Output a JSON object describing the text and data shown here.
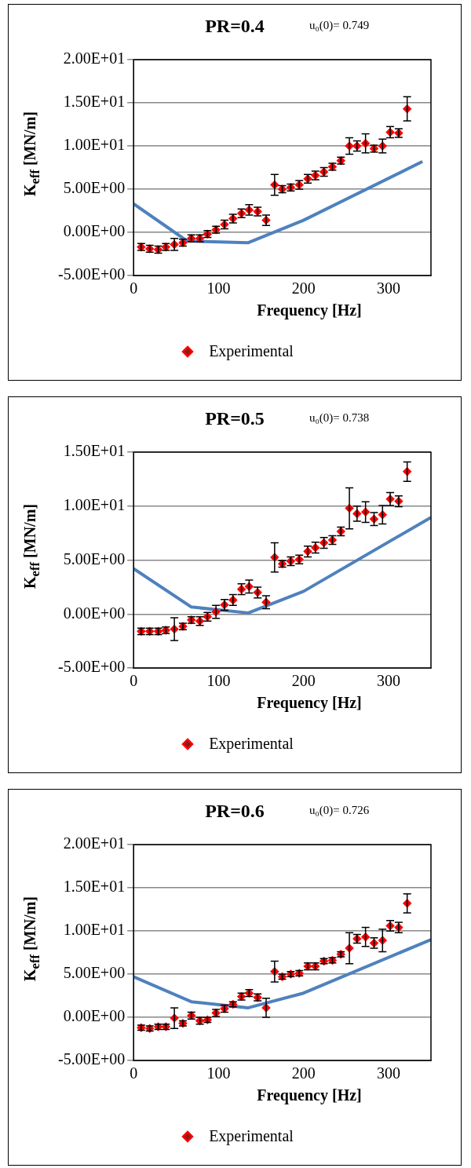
{
  "chart_data": [
    {
      "type": "scatter",
      "title": "PR=0.4",
      "annotations": [
        "u₀(0)= 0.749"
      ],
      "xlabel": "Frequency [Hz]",
      "ylabel": "K$_{eff}$ [MN/m]",
      "xlim": [
        0,
        350
      ],
      "xticks": [
        0,
        100,
        200,
        300
      ],
      "ylim": [
        -5,
        20
      ],
      "yticks": [
        {
          "value": -5,
          "label": "-5.00E+00"
        },
        {
          "value": 0,
          "label": "0.00E+00"
        },
        {
          "value": 5,
          "label": "5.00E+00"
        },
        {
          "value": 10,
          "label": "1.00E+01"
        },
        {
          "value": 15,
          "label": "1.50E+01"
        },
        {
          "value": 20,
          "label": "2.00E+01"
        }
      ],
      "grid": "y",
      "legend": "bottom",
      "series": [
        {
          "type": "line",
          "marker": "none",
          "color": "#4f81bd",
          "x": [
            0,
            63,
            135,
            200,
            340
          ],
          "values": [
            3.3,
            -1.0,
            -1.2,
            1.4,
            8.2
          ]
        },
        {
          "name": "Experimental",
          "marker": "diamond",
          "color": "#ff0000",
          "x": [
            9,
            19,
            29,
            38,
            48,
            58,
            68,
            78,
            87,
            97,
            107,
            117,
            127,
            136,
            146,
            156,
            166,
            175,
            185,
            195,
            205,
            214,
            224,
            234,
            244,
            254,
            263,
            273,
            283,
            293,
            302,
            312,
            322
          ],
          "values": [
            -1.7,
            -1.9,
            -2.0,
            -1.7,
            -1.4,
            -1.2,
            -0.7,
            -0.7,
            -0.2,
            0.3,
            0.9,
            1.6,
            2.2,
            2.6,
            2.4,
            1.4,
            5.5,
            5.0,
            5.2,
            5.5,
            6.2,
            6.6,
            7.0,
            7.6,
            8.3,
            10.0,
            10.0,
            10.3,
            9.7,
            10.0,
            11.6,
            11.5,
            14.3
          ],
          "errors": [
            0.4,
            0.4,
            0.4,
            0.4,
            0.7,
            0.4,
            0.4,
            0.4,
            0.4,
            0.4,
            0.5,
            0.5,
            0.5,
            0.6,
            0.5,
            0.6,
            1.2,
            0.4,
            0.4,
            0.5,
            0.5,
            0.5,
            0.5,
            0.4,
            0.4,
            0.95,
            0.6,
            1.1,
            0.4,
            0.8,
            0.65,
            0.5,
            1.4
          ]
        }
      ]
    },
    {
      "type": "scatter",
      "title": "PR=0.5",
      "annotations": [
        "u₀(0)= 0.738"
      ],
      "xlabel": "Frequency [Hz]",
      "ylabel": "K$_{eff}$ [MN/m]",
      "xlim": [
        0,
        350
      ],
      "xticks": [
        0,
        100,
        200,
        300
      ],
      "ylim": [
        -5,
        15
      ],
      "yticks": [
        {
          "value": -5,
          "label": "-5.00E+00"
        },
        {
          "value": 0,
          "label": "0.00E+00"
        },
        {
          "value": 5,
          "label": "5.00E+00"
        },
        {
          "value": 10,
          "label": "1.00E+01"
        },
        {
          "value": 15,
          "label": "1.50E+01"
        }
      ],
      "grid": "y",
      "legend": "bottom",
      "series": [
        {
          "type": "line",
          "marker": "none",
          "color": "#4f81bd",
          "x": [
            0,
            68,
            135,
            200,
            350
          ],
          "values": [
            4.2,
            0.65,
            0.1,
            2.1,
            8.95
          ]
        },
        {
          "name": "Experimental",
          "marker": "diamond",
          "color": "#ff0000",
          "x": [
            9,
            19,
            29,
            38,
            48,
            58,
            68,
            78,
            87,
            97,
            107,
            117,
            127,
            136,
            146,
            156,
            166,
            175,
            185,
            195,
            205,
            214,
            224,
            234,
            244,
            254,
            263,
            273,
            283,
            293,
            302,
            312,
            322
          ],
          "values": [
            -1.6,
            -1.6,
            -1.6,
            -1.5,
            -1.4,
            -1.15,
            -0.55,
            -0.65,
            -0.25,
            0.2,
            0.85,
            1.3,
            2.3,
            2.55,
            2.0,
            1.1,
            5.25,
            4.65,
            4.9,
            5.05,
            5.8,
            6.15,
            6.6,
            6.85,
            7.65,
            9.8,
            9.3,
            9.45,
            8.8,
            9.2,
            10.65,
            10.45,
            13.2
          ],
          "errors": [
            0.3,
            0.3,
            0.3,
            0.3,
            1.05,
            0.3,
            0.3,
            0.4,
            0.4,
            0.6,
            0.5,
            0.5,
            0.5,
            0.6,
            0.5,
            0.6,
            1.35,
            0.3,
            0.4,
            0.4,
            0.5,
            0.5,
            0.5,
            0.4,
            0.4,
            1.9,
            0.7,
            0.95,
            0.6,
            0.85,
            0.6,
            0.5,
            0.9
          ]
        }
      ]
    },
    {
      "type": "scatter",
      "title": "PR=0.6",
      "annotations": [
        "u₀(0)= 0.726"
      ],
      "xlabel": "Frequency [Hz]",
      "ylabel": "K$_{eff}$ [MN/m]",
      "xlim": [
        0,
        350
      ],
      "xticks": [
        0,
        100,
        200,
        300
      ],
      "ylim": [
        -5,
        20
      ],
      "yticks": [
        {
          "value": -5,
          "label": "-5.00E+00"
        },
        {
          "value": 0,
          "label": "0.00E+00"
        },
        {
          "value": 5,
          "label": "5.00E+00"
        },
        {
          "value": 10,
          "label": "1.00E+01"
        },
        {
          "value": 15,
          "label": "1.50E+01"
        },
        {
          "value": 20,
          "label": "2.00E+01"
        }
      ],
      "grid": "y",
      "legend": "bottom",
      "series": [
        {
          "type": "line",
          "marker": "none",
          "color": "#4f81bd",
          "x": [
            0,
            68,
            135,
            200,
            350
          ],
          "values": [
            4.7,
            1.8,
            1.1,
            2.8,
            9.0
          ]
        },
        {
          "name": "Experimental",
          "marker": "diamond",
          "color": "#ff0000",
          "x": [
            9,
            19,
            29,
            38,
            48,
            58,
            68,
            78,
            87,
            97,
            107,
            117,
            127,
            136,
            146,
            156,
            166,
            175,
            185,
            195,
            205,
            214,
            224,
            234,
            244,
            254,
            263,
            273,
            283,
            293,
            302,
            312,
            322
          ],
          "values": [
            -1.2,
            -1.3,
            -1.1,
            -1.1,
            -0.1,
            -0.7,
            0.2,
            -0.4,
            -0.3,
            0.5,
            1.0,
            1.5,
            2.4,
            2.8,
            2.3,
            1.1,
            5.3,
            4.7,
            5.0,
            5.1,
            5.9,
            5.9,
            6.5,
            6.6,
            7.3,
            8.0,
            9.1,
            9.3,
            8.6,
            8.9,
            10.6,
            10.4,
            13.2
          ],
          "errors": [
            0.3,
            0.3,
            0.3,
            0.3,
            1.2,
            0.3,
            0.4,
            0.4,
            0.3,
            0.4,
            0.4,
            0.3,
            0.4,
            0.4,
            0.4,
            1.1,
            1.2,
            0.3,
            0.3,
            0.3,
            0.4,
            0.4,
            0.3,
            0.3,
            0.3,
            1.8,
            0.5,
            1.1,
            0.6,
            1.3,
            0.6,
            0.6,
            1.1
          ]
        }
      ]
    }
  ]
}
